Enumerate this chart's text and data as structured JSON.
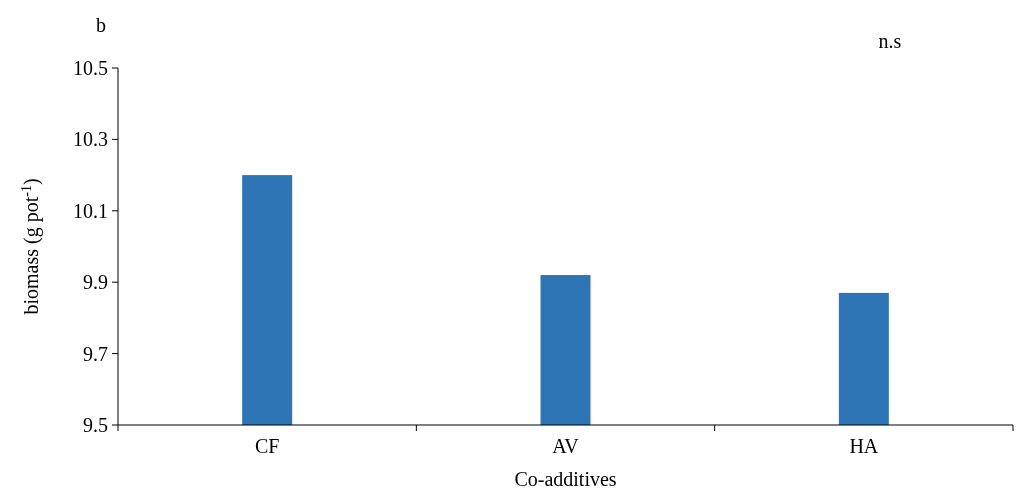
{
  "chart_data": {
    "type": "bar",
    "ylabel": "biomass (g pot$^{-1}$)",
    "xlabel": "Co-additives",
    "categories": [
      "CF",
      "AV",
      "HA"
    ],
    "values": [
      10.2,
      9.92,
      9.87
    ],
    "color": "#2e75b6",
    "ylim": [
      9.5,
      10.5
    ],
    "yticks": [
      9.5,
      9.7,
      9.9,
      10.1,
      10.3,
      10.5
    ],
    "grid": false,
    "annotations": [
      "b",
      "n.s"
    ]
  }
}
